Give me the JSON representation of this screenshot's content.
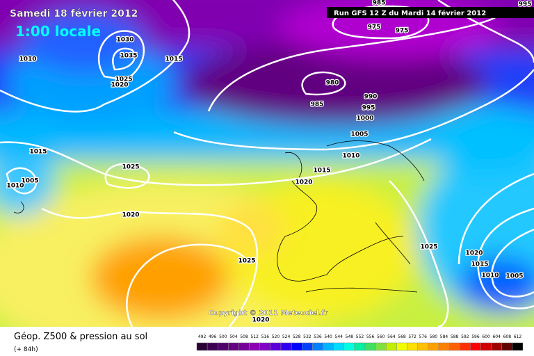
{
  "header": {
    "date": "Samedi 18 février 2012",
    "time": "1:00 locale",
    "run": "Run GFS 12 Z du Mardi 14 février 2012"
  },
  "isobar_labels": [
    1030,
    1035,
    1015,
    1010,
    1025,
    1020,
    975,
    975,
    995,
    985,
    980,
    990,
    995,
    985,
    1000,
    1005,
    1010,
    1015,
    1025,
    1015,
    1005,
    1010,
    1020,
    1020,
    1025,
    1025,
    1020,
    1015,
    1010,
    1005,
    1020
  ],
  "copyright": "Copyright © 2011 Meteociel.fr",
  "footer": {
    "title": "Géop. Z500 & pression au sol",
    "lead": "(+ 84h)"
  },
  "legend": {
    "values": [
      492,
      496,
      500,
      504,
      508,
      512,
      516,
      520,
      524,
      528,
      532,
      536,
      540,
      544,
      548,
      552,
      556,
      560,
      564,
      568,
      572,
      576,
      580,
      584,
      588,
      592,
      596,
      600,
      604,
      608,
      612
    ],
    "colors": [
      "#2a0035",
      "#3c0050",
      "#50006a",
      "#640082",
      "#78009a",
      "#8c00b4",
      "#8000c8",
      "#5a00dc",
      "#3000f0",
      "#0000ff",
      "#0040ff",
      "#0080ff",
      "#00b4ff",
      "#00dcff",
      "#00ffe0",
      "#00f0a0",
      "#40e060",
      "#80e040",
      "#c0f000",
      "#f0ff00",
      "#ffe000",
      "#ffc000",
      "#ffa000",
      "#ff8000",
      "#ff6000",
      "#ff3000",
      "#ff0000",
      "#d00000",
      "#a00000",
      "#600000",
      "#000000"
    ]
  }
}
